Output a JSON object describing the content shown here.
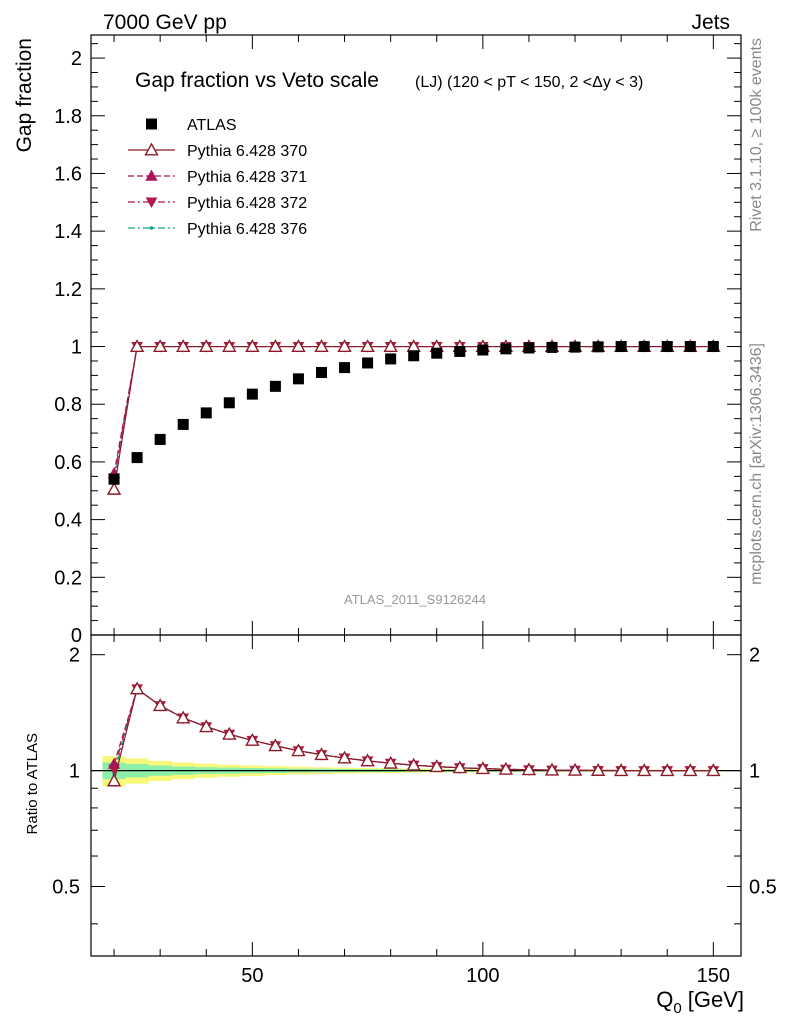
{
  "header": {
    "left": "7000 GeV pp",
    "right": "Jets"
  },
  "side": {
    "rivet": "Rivet 3.1.10, ≥ 100k events",
    "mcplots": "mcplots.cern.ch [arXiv:1306.3436]"
  },
  "watermark": "ATLAS_2011_S9126244",
  "chart_data": [
    {
      "type": "scatter",
      "title": "Gap fraction vs Veto scale",
      "subtitle": "(LJ) (120 < pT < 150, 2 <Δy < 3)",
      "xlabel": "Q",
      "xlabel_sub": "0",
      "xlabel_unit": "[GeV]",
      "ylabel": "Gap fraction",
      "xlim": [
        15,
        156
      ],
      "ylim": [
        0,
        2.08
      ],
      "yticks": [
        "0",
        "0.2",
        "0.4",
        "0.6",
        "0.8",
        "1",
        "1.2",
        "1.4",
        "1.6",
        "1.8",
        "2"
      ],
      "x": [
        20,
        25,
        30,
        35,
        40,
        45,
        50,
        55,
        60,
        65,
        70,
        75,
        80,
        85,
        90,
        95,
        100,
        105,
        110,
        115,
        120,
        125,
        130,
        135,
        140,
        145,
        150
      ],
      "series": [
        {
          "name": "ATLAS",
          "color": "#000000",
          "marker": "square",
          "values": [
            0.54,
            0.615,
            0.678,
            0.73,
            0.77,
            0.805,
            0.835,
            0.862,
            0.888,
            0.91,
            0.927,
            0.943,
            0.957,
            0.968,
            0.977,
            0.983,
            0.988,
            0.992,
            0.995,
            0.997,
            0.998,
            0.999,
            1.0,
            1.0,
            1.0,
            1.0,
            1.0
          ]
        },
        {
          "name": "Pythia 6.428 370",
          "color": "#8b1c28",
          "marker": "triangle-up-open",
          "line": "solid",
          "values": [
            0.505,
            1,
            1,
            1,
            1,
            1,
            1,
            1,
            1,
            1,
            1,
            1,
            1,
            1,
            1,
            1,
            1,
            1,
            1,
            1,
            1,
            1,
            1,
            1,
            1,
            1,
            1
          ]
        },
        {
          "name": "Pythia 6.428 371",
          "color": "#a8155a",
          "marker": "triangle-up",
          "line": "dashed",
          "values": [
            0.56,
            1,
            1,
            1,
            1,
            1,
            1,
            1,
            1,
            1,
            1,
            1,
            1,
            1,
            1,
            1,
            1,
            1,
            1,
            1,
            1,
            1,
            1,
            1,
            1,
            1,
            1
          ]
        },
        {
          "name": "Pythia 6.428 372",
          "color": "#b01848",
          "marker": "triangle-down",
          "line": "dashdot",
          "values": [
            0.545,
            1,
            1,
            1,
            1,
            1,
            1,
            1,
            1,
            1,
            1,
            1,
            1,
            1,
            1,
            1,
            1,
            1,
            1,
            1,
            1,
            1,
            1,
            1,
            1,
            1,
            1
          ]
        },
        {
          "name": "Pythia 6.428 376",
          "color": "#16a085",
          "marker": "dot",
          "line": "dashdot",
          "values": [
            0.53,
            1,
            1,
            1,
            1,
            1,
            1,
            1,
            1,
            1,
            1,
            1,
            1,
            1,
            1,
            1,
            1,
            1,
            1,
            1,
            1,
            1,
            1,
            1,
            1,
            1,
            1
          ]
        }
      ],
      "legend": "top-left"
    },
    {
      "type": "scatter",
      "ylabel": "Ratio to ATLAS",
      "xlim": [
        15,
        156
      ],
      "ylim": [
        0.33,
        2.25
      ],
      "xticks": [
        "50",
        "100",
        "150"
      ],
      "yticks": [
        "0.5",
        "1",
        "2"
      ],
      "x": [
        20,
        25,
        30,
        35,
        40,
        45,
        50,
        55,
        60,
        65,
        70,
        75,
        80,
        85,
        90,
        95,
        100,
        105,
        110,
        115,
        120,
        125,
        130,
        135,
        140,
        145,
        150
      ],
      "band_inner": [
        0.05,
        0.04,
        0.03,
        0.025,
        0.02,
        0.018,
        0.016,
        0.014,
        0.012,
        0.011,
        0.01,
        0.009,
        0.008,
        0.007,
        0.006,
        0.006,
        0.005,
        0.005,
        0.004,
        0.004,
        0.004,
        0.003,
        0.003,
        0.003,
        0.003,
        0.003,
        0.003
      ],
      "band_outer": [
        0.09,
        0.075,
        0.06,
        0.05,
        0.042,
        0.036,
        0.031,
        0.027,
        0.023,
        0.02,
        0.018,
        0.016,
        0.014,
        0.012,
        0.011,
        0.01,
        0.009,
        0.008,
        0.007,
        0.007,
        0.006,
        0.006,
        0.005,
        0.005,
        0.005,
        0.005,
        0.005
      ],
      "series": [
        {
          "name": "Pythia 6.428 370",
          "values": [
            0.94,
            1.63,
            1.475,
            1.37,
            1.3,
            1.243,
            1.198,
            1.16,
            1.126,
            1.1,
            1.078,
            1.06,
            1.045,
            1.033,
            1.024,
            1.017,
            1.012,
            1.008,
            1.005,
            1.003,
            1.002,
            1.001,
            1.0,
            1.0,
            1.0,
            1.0,
            1.0
          ]
        },
        {
          "name": "Pythia 6.428 371",
          "values": [
            1.04,
            1.63,
            1.475,
            1.37,
            1.3,
            1.243,
            1.198,
            1.16,
            1.126,
            1.1,
            1.078,
            1.06,
            1.045,
            1.033,
            1.024,
            1.017,
            1.012,
            1.008,
            1.005,
            1.003,
            1.002,
            1.001,
            1.0,
            1.0,
            1.0,
            1.0,
            1.0
          ]
        },
        {
          "name": "Pythia 6.428 372",
          "values": [
            1.01,
            1.63,
            1.475,
            1.37,
            1.3,
            1.243,
            1.198,
            1.16,
            1.126,
            1.1,
            1.078,
            1.06,
            1.045,
            1.033,
            1.024,
            1.017,
            1.012,
            1.008,
            1.005,
            1.003,
            1.002,
            1.001,
            1.0,
            1.0,
            1.0,
            1.0,
            1.0
          ]
        },
        {
          "name": "Pythia 6.428 376",
          "values": [
            0.98,
            1.63,
            1.475,
            1.37,
            1.3,
            1.243,
            1.198,
            1.16,
            1.126,
            1.1,
            1.078,
            1.06,
            1.045,
            1.033,
            1.024,
            1.017,
            1.012,
            1.008,
            1.005,
            1.003,
            1.002,
            1.001,
            1.0,
            1.0,
            1.0,
            1.0,
            1.0
          ]
        }
      ]
    }
  ]
}
